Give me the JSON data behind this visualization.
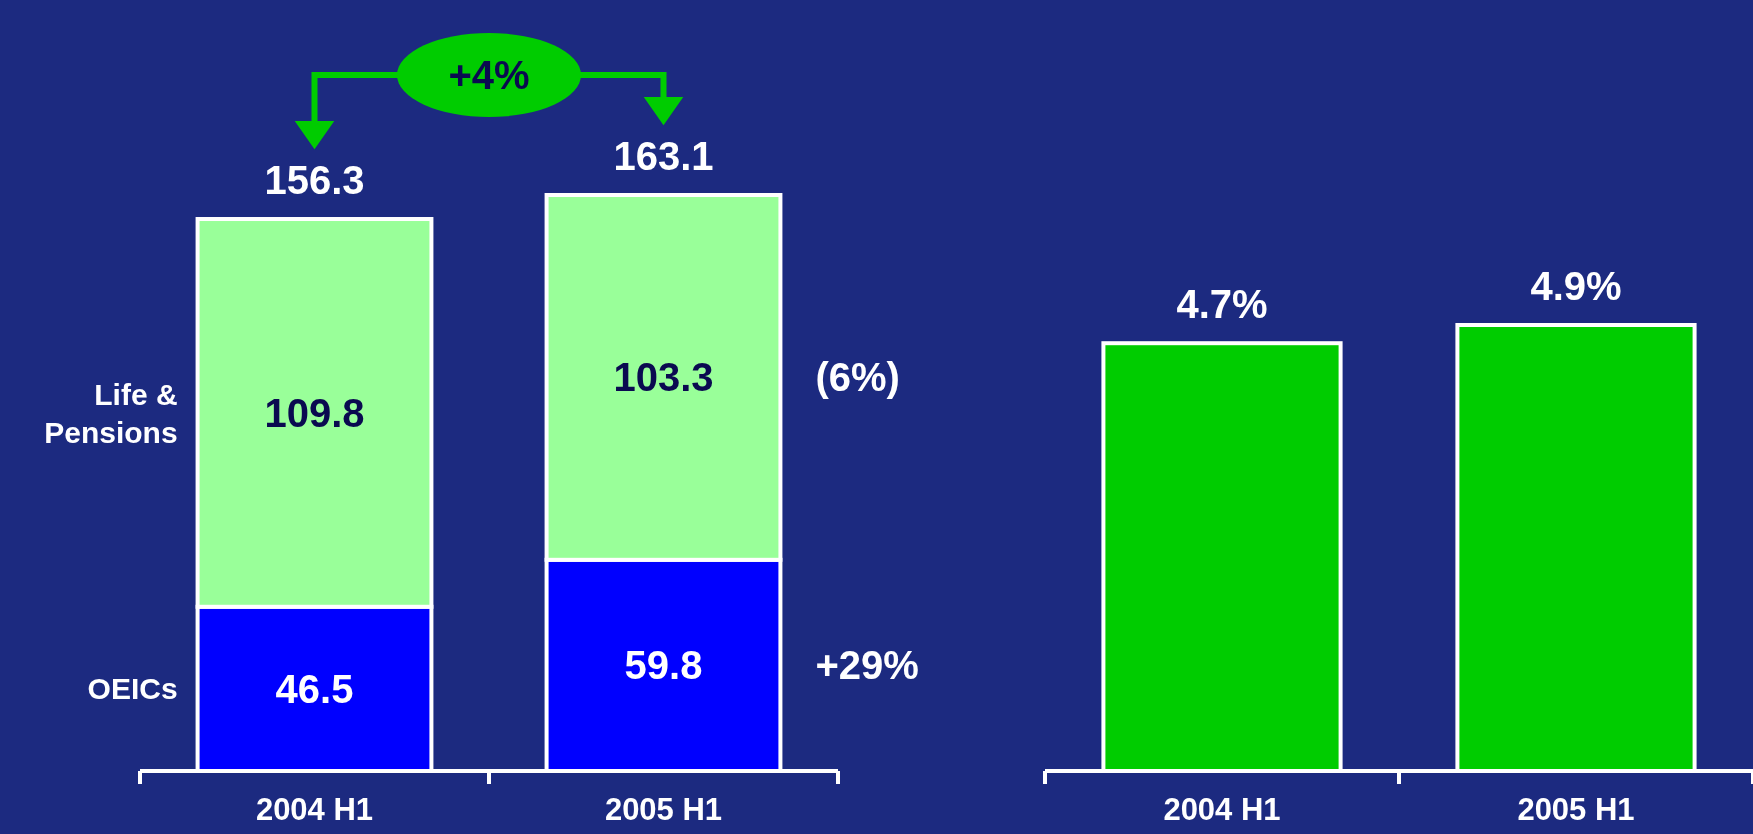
{
  "chart_data": [
    {
      "type": "bar",
      "stacked": true,
      "categories": [
        "2004 H1",
        "2005 H1"
      ],
      "series": [
        {
          "name": "OEICs",
          "color": "#0000ff",
          "values": [
            46.5,
            59.8
          ]
        },
        {
          "name": "Life & Pensions",
          "color": "#99ff99",
          "values": [
            109.8,
            103.3
          ]
        }
      ],
      "data_labels": true,
      "totals": [
        "156.3",
        "163.1"
      ],
      "annotations": [
        "+4%",
        "+29%",
        "(6%)"
      ]
    },
    {
      "type": "bar",
      "categories": [
        "2004 H1",
        "2005 H1"
      ],
      "values": [
        4.7,
        4.9
      ],
      "color": "#00cc00",
      "value_labels": [
        "4.7%",
        "4.9%"
      ]
    }
  ]
}
